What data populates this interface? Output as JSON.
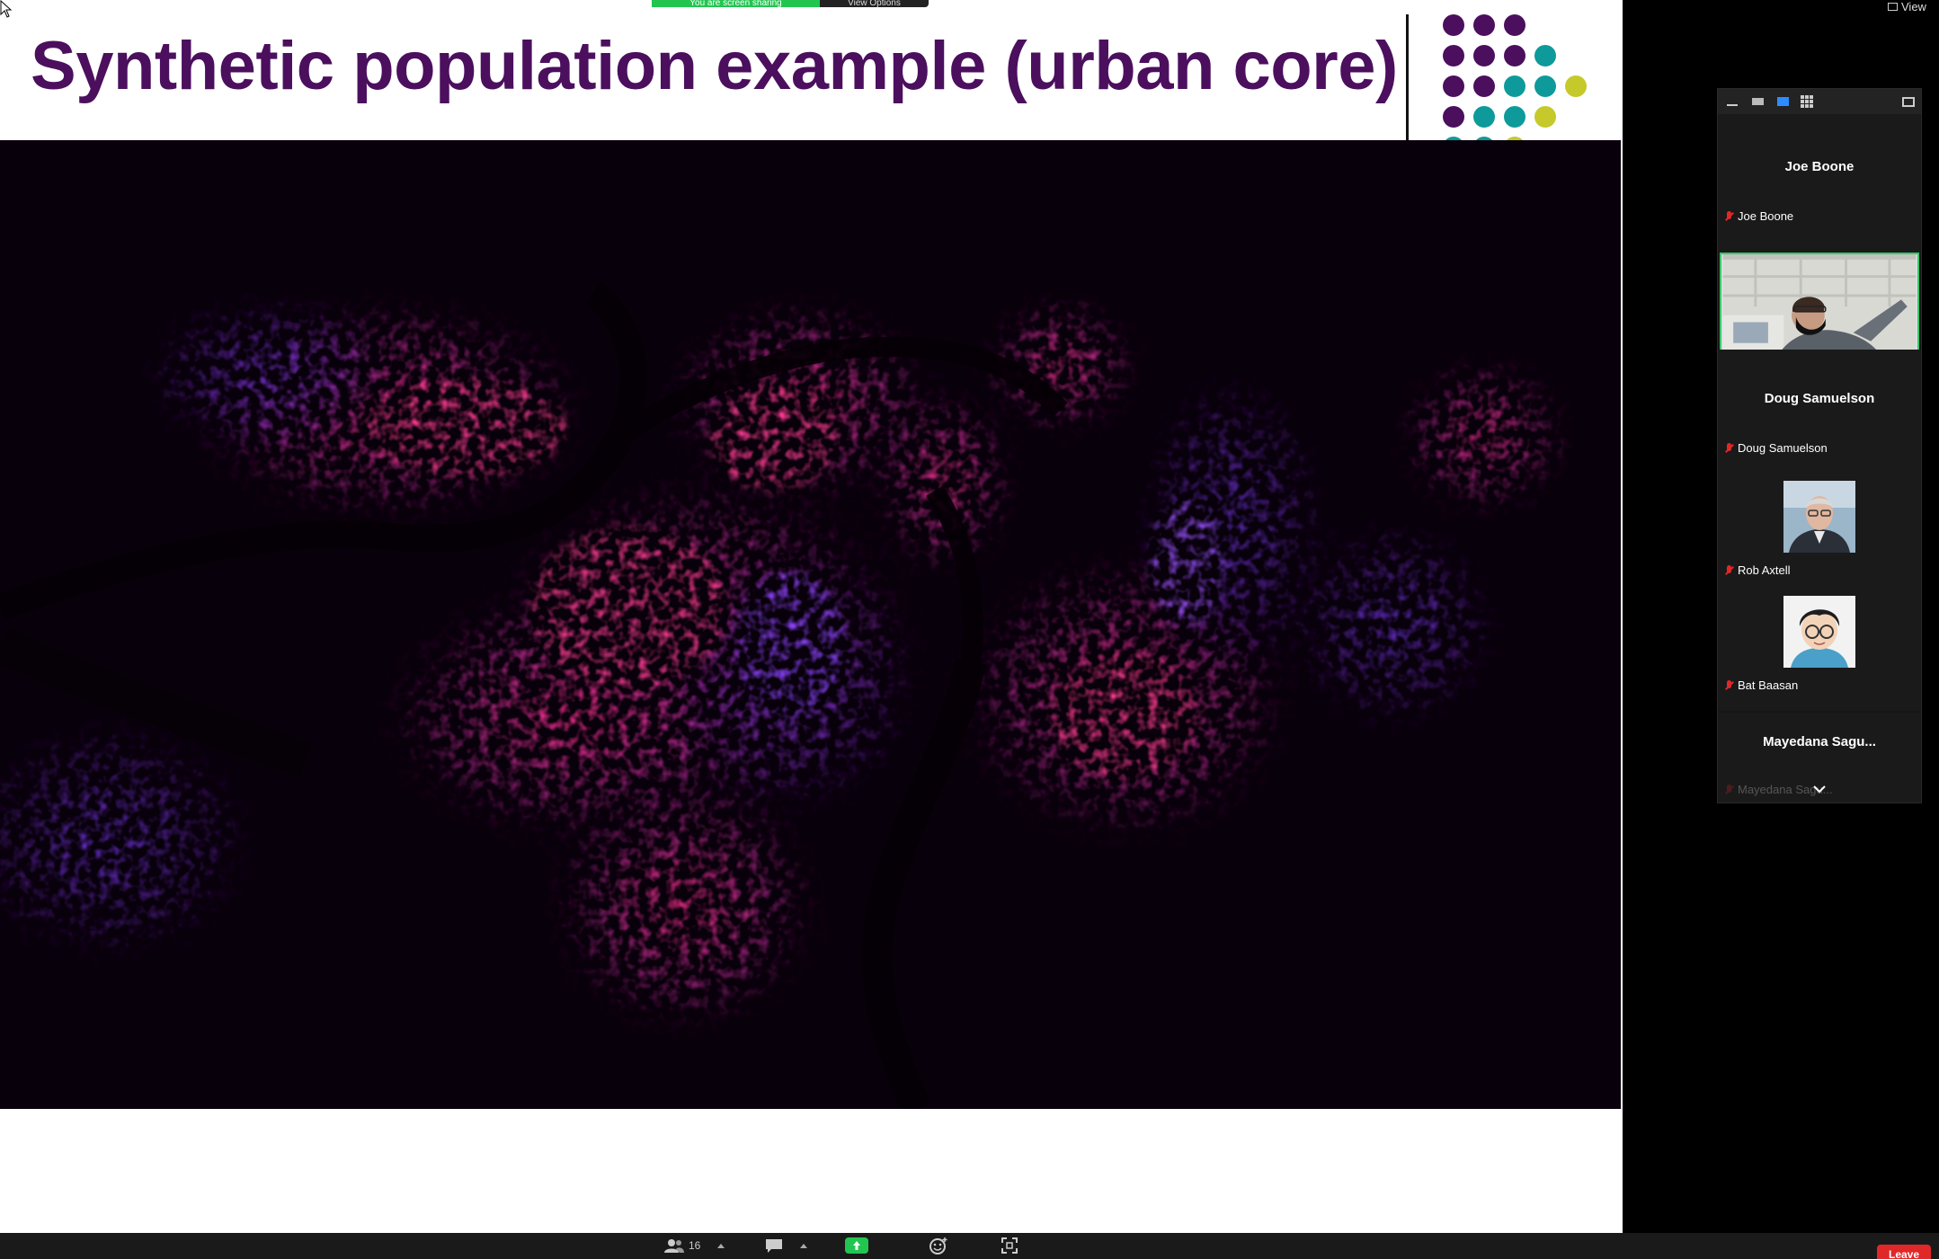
{
  "slide": {
    "title": "Synthetic population example (urban core)",
    "title_color": "#4b0f5e",
    "dot_colors": {
      "purple": "#4b0f5e",
      "teal": "#0e9a9a",
      "lime": "#c6c92a"
    }
  },
  "share_banner": {
    "status": "You are screen sharing",
    "options": "View Options"
  },
  "view_button": {
    "label": "View"
  },
  "gallery": {
    "tiles": [
      {
        "center_name": "Joe Boone",
        "label": "Joe Boone",
        "video_tag": "ross"
      },
      {
        "center_name": "Doug Samuelson",
        "label": "Doug Samuelson"
      },
      {
        "label": "Rob Axtell"
      },
      {
        "label": "Bat Baasan"
      },
      {
        "center_name": "Mayedana  Sagu...",
        "label": "Mayedana Sagu..."
      }
    ]
  },
  "bottom_bar": {
    "participants_count": "16",
    "leave_label": "Leave"
  }
}
